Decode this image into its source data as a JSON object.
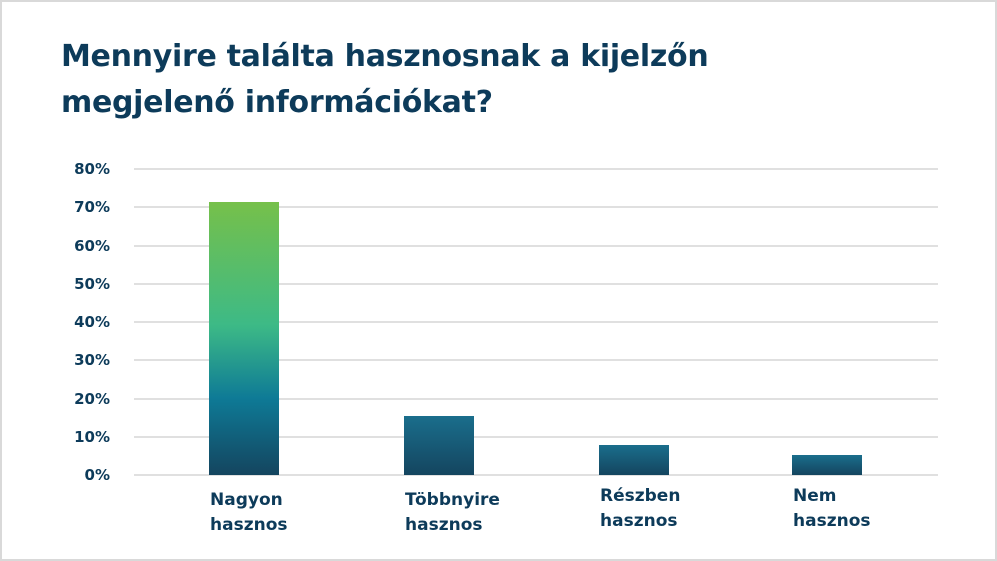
{
  "title": "Mennyire találta hasznosnak a kijelzőn megjelenő információkat?",
  "title_lines": [
    "Mennyire találta hasznosnak a kijelzőn",
    "megjelenő információkat?"
  ],
  "colors": {
    "title": "#0d3b5a",
    "bar_gradient_top": "#76c04a",
    "bar_gradient_mid": "#3dba86",
    "bar_gradient_low": "#0e7a96",
    "bar_dark": "#14455f",
    "grid": "#e0e0e0"
  },
  "y_ticks": [
    "0%",
    "10%",
    "20%",
    "30%",
    "40%",
    "50%",
    "60%",
    "70%",
    "80%"
  ],
  "categories": [
    {
      "line1": "Nagyon",
      "line2": "hasznos"
    },
    {
      "line1": "Többnyire",
      "line2": "hasznos"
    },
    {
      "line1": "Részben",
      "line2": "hasznos"
    },
    {
      "line1": "Nem",
      "line2": "hasznos"
    }
  ],
  "chart_data": {
    "type": "bar",
    "title": "Mennyire találta hasznosnak a kijelzőn megjelenő információkat?",
    "categories": [
      "Nagyon hasznos",
      "Többnyire hasznos",
      "Részben hasznos",
      "Nem hasznos"
    ],
    "values": [
      71.4,
      15.4,
      7.8,
      5.2
    ],
    "xlabel": "",
    "ylabel": "",
    "ylim": [
      0,
      80
    ],
    "y_unit": "%",
    "y_tick_step": 10,
    "grid": true,
    "legend": "none"
  }
}
